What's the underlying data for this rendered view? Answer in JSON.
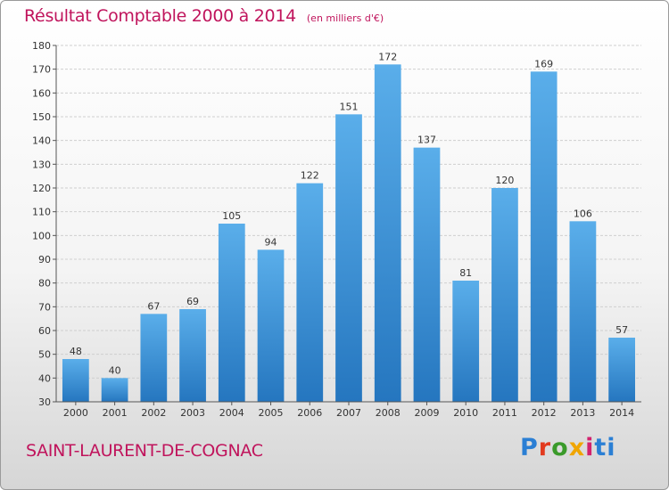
{
  "chart_data": {
    "type": "bar",
    "title": "Résultat Comptable 2000 à 2014",
    "subtitle": "(en milliers d'€)",
    "categories": [
      "2000",
      "2001",
      "2002",
      "2003",
      "2004",
      "2005",
      "2006",
      "2007",
      "2008",
      "2009",
      "2010",
      "2011",
      "2012",
      "2013",
      "2014"
    ],
    "values": [
      48,
      40,
      67,
      69,
      105,
      94,
      122,
      151,
      172,
      137,
      81,
      120,
      169,
      106,
      57
    ],
    "ylim": [
      30,
      180
    ],
    "yticks": [
      30,
      40,
      50,
      60,
      70,
      80,
      90,
      100,
      110,
      120,
      130,
      140,
      150,
      160,
      170,
      180
    ],
    "xlabel": "",
    "ylabel": "",
    "grid": true,
    "bar_color": "#3c93dc",
    "grid_color": "#cfcfcf"
  },
  "footer": {
    "commune": "SAINT-LAURENT-DE-COGNAC",
    "brand": [
      "P",
      "r",
      "o",
      "x",
      "i",
      "ti"
    ]
  },
  "colors": {
    "accent": "#c0145c"
  }
}
